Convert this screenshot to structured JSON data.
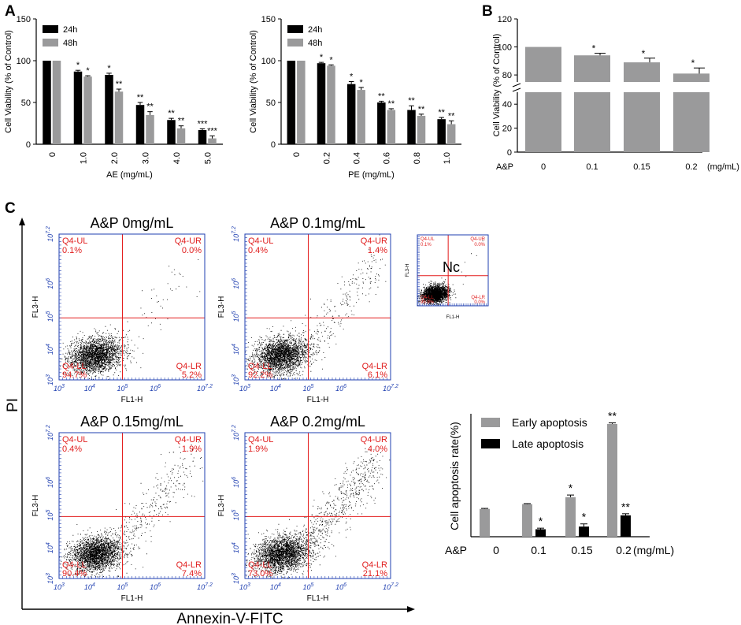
{
  "colors": {
    "black_bar": "#000000",
    "gray_bar": "#9a9a9b",
    "quadrant_line": "#e31b1b",
    "quadrant_text": "#e01e1e",
    "flow_frame": "#1f3fb0"
  },
  "panel_labels": {
    "a": "A",
    "b": "B",
    "c": "C"
  },
  "chart_data": [
    {
      "id": "AE",
      "type": "bar",
      "title": "",
      "categories": [
        "0",
        "1.0",
        "2.0",
        "3.0",
        "4.0",
        "5.0"
      ],
      "series": [
        {
          "name": "24h",
          "values": [
            100,
            87,
            83,
            47,
            29,
            17
          ],
          "errors": [
            0,
            1.5,
            2,
            3,
            2,
            1.5
          ],
          "sig": [
            "",
            "*",
            "*",
            "**",
            "**",
            "***"
          ]
        },
        {
          "name": "48h",
          "values": [
            100,
            81,
            63,
            35,
            19,
            7
          ],
          "errors": [
            0,
            1,
            3,
            4,
            3,
            3
          ],
          "sig": [
            "",
            "*",
            "**",
            "**",
            "**",
            "***"
          ]
        }
      ],
      "xlabel": "AE (mg/mL)",
      "ylabel": "Cell Viability (% of Control)",
      "ylim": [
        0,
        150
      ],
      "yticks": [
        "0",
        "50",
        "100",
        "150"
      ],
      "legend": "top-left"
    },
    {
      "id": "PE",
      "type": "bar",
      "title": "",
      "categories": [
        "0",
        "0.2",
        "0.4",
        "0.6",
        "0.8",
        "1.0"
      ],
      "series": [
        {
          "name": "24h",
          "values": [
            100,
            97,
            72,
            50,
            41,
            30
          ],
          "errors": [
            0,
            1,
            3,
            1.5,
            5,
            2
          ],
          "sig": [
            "",
            "*",
            "*",
            "**",
            "**",
            "**"
          ]
        },
        {
          "name": "48h",
          "values": [
            100,
            94,
            65,
            41,
            34,
            24
          ],
          "errors": [
            0,
            1,
            3,
            1.5,
            2,
            4
          ],
          "sig": [
            "",
            "*",
            "*",
            "**",
            "**",
            "**"
          ]
        }
      ],
      "xlabel": "PE (mg/mL)",
      "ylabel": "Cell Viability (% of Control)",
      "ylim": [
        0,
        150
      ],
      "yticks": [
        "0",
        "50",
        "100",
        "150"
      ],
      "legend": "top-left"
    },
    {
      "id": "B",
      "type": "bar",
      "title": "",
      "categories": [
        "0",
        "0.1",
        "0.15",
        "0.2"
      ],
      "series": [
        {
          "name": "A&P",
          "values": [
            100,
            94,
            89,
            81
          ],
          "errors": [
            0,
            1.5,
            3,
            4
          ],
          "sig": [
            "",
            "*",
            "*",
            "*"
          ]
        }
      ],
      "xprefix": "A&P",
      "xunit": "(mg/mL)",
      "ylabel": "Cell Viability (% of Control)",
      "ylim_lower": [
        0,
        50
      ],
      "ylim_upper": [
        75,
        120
      ],
      "yticks_lower": [
        "0",
        "20",
        "40"
      ],
      "yticks_upper": [
        "80",
        "100",
        "120"
      ]
    },
    {
      "id": "C-bar",
      "type": "bar",
      "title": "",
      "categories": [
        "0",
        "0.1",
        "0.15",
        "0.2"
      ],
      "series": [
        {
          "name": "Early apoptosis",
          "values": [
            5.2,
            6.1,
            7.4,
            21.1
          ],
          "errors": [
            0.1,
            0.1,
            0.4,
            0.2
          ],
          "sig": [
            "",
            "",
            "*",
            "**"
          ]
        },
        {
          "name": "Late apoptosis",
          "values": [
            0,
            1.4,
            1.9,
            4.0
          ],
          "errors": [
            0,
            0.2,
            0.5,
            0.3
          ],
          "sig": [
            "",
            "*",
            "*",
            "**"
          ]
        }
      ],
      "xprefix": "A&P",
      "xunit": "(mg/mL)",
      "ylabel": "Cell apoptosis rate(%)",
      "ylim": [
        0,
        23
      ],
      "legend": "top-right"
    }
  ],
  "flow": {
    "y_axis_label": "PI",
    "x_axis_label": "Annexin-V-FITC",
    "axis_x_label": "FL1-H",
    "axis_y_label": "FL3-H",
    "x_ticks": [
      "10^3",
      "10^4",
      "10^5",
      "10^6",
      "10^7.2"
    ],
    "y_ticks": [
      "10^3",
      "10^4",
      "10^5",
      "10^6",
      "10^7.2"
    ],
    "quadrant_names": {
      "ul": "Q4-UL",
      "ur": "Q4-UR",
      "ll": "Q4-LL",
      "lr": "Q4-LR"
    },
    "plots": [
      {
        "title": "A&P 0mg/mL",
        "ul": "0.1%",
        "ur": "0.0%",
        "ll": "94.7%",
        "lr": "5.2%"
      },
      {
        "title": "A&P 0.1mg/mL",
        "ul": "0.4%",
        "ur": "1.4%",
        "ll": "92.2%",
        "lr": "6.1%"
      },
      {
        "title": "A&P 0.15mg/mL",
        "ul": "0.4%",
        "ur": "1.9%",
        "ll": "90.4%",
        "lr": "7.4%"
      },
      {
        "title": "A&P 0.2mg/mL",
        "ul": "1.9%",
        "ur": "4.0%",
        "ll": "73.0%",
        "lr": "21.1%"
      }
    ],
    "control": {
      "label": "Nc",
      "ul": "0.1%",
      "ur": "0.0%",
      "ll": "99.9%",
      "lr": "0.0%"
    }
  }
}
